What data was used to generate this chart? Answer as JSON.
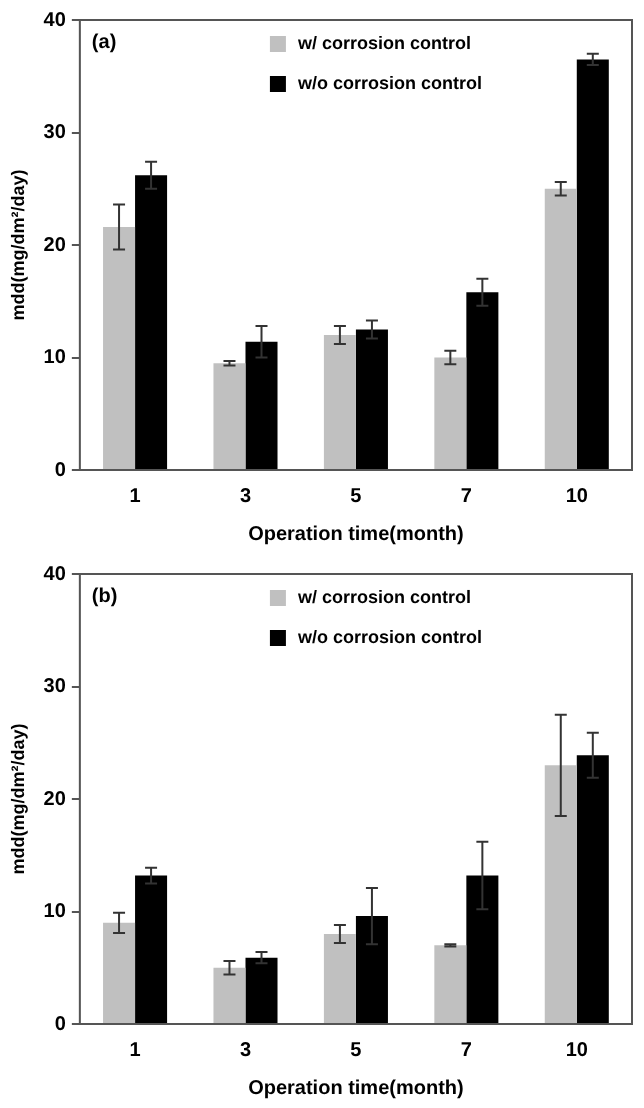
{
  "chart_data": [
    {
      "type": "bar",
      "annotations": [
        "(a)"
      ],
      "xlabel": "Operation time(month)",
      "ylabel": "mdd(mg/dm²/day)",
      "categories": [
        "1",
        "3",
        "5",
        "7",
        "10"
      ],
      "series": [
        {
          "name": "w/ corrosion control",
          "color": "#c0c0c0",
          "values": [
            21.6,
            9.5,
            12,
            10,
            25
          ],
          "errors": [
            2,
            0.2,
            0.8,
            0.6,
            0.6
          ]
        },
        {
          "name": "w/o corrosion control",
          "color": "#000000",
          "values": [
            26.2,
            11.4,
            12.5,
            15.8,
            36.5
          ],
          "errors": [
            1.2,
            1.4,
            0.8,
            1.2,
            0.5
          ]
        }
      ],
      "ylim": [
        0,
        40
      ],
      "yticks": [
        0,
        10,
        20,
        30,
        40
      ],
      "grid": false,
      "legend": "top"
    },
    {
      "type": "bar",
      "annotations": [
        "(b)"
      ],
      "xlabel": "Operation time(month)",
      "ylabel": "mdd(mg/dm²/day)",
      "categories": [
        "1",
        "3",
        "5",
        "7",
        "10"
      ],
      "series": [
        {
          "name": "w/ corrosion control",
          "color": "#c0c0c0",
          "values": [
            9,
            5,
            8,
            7,
            23
          ],
          "errors": [
            0.9,
            0.6,
            0.8,
            0.1,
            4.5
          ]
        },
        {
          "name": "w/o corrosion control",
          "color": "#000000",
          "values": [
            13.2,
            5.9,
            9.6,
            13.2,
            23.9
          ],
          "errors": [
            0.7,
            0.5,
            2.5,
            3,
            2
          ]
        }
      ],
      "ylim": [
        0,
        40
      ],
      "yticks": [
        0,
        10,
        20,
        30,
        40
      ],
      "grid": false,
      "legend": "top"
    }
  ]
}
